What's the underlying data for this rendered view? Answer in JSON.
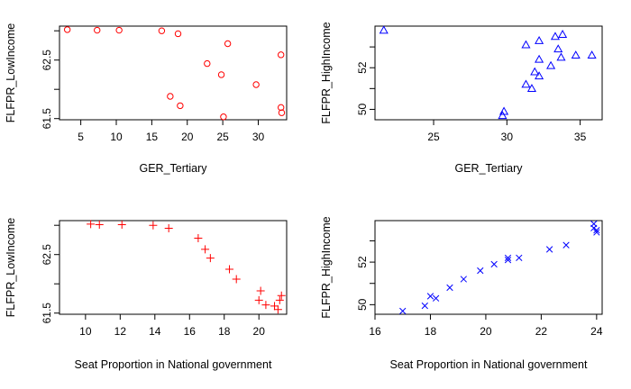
{
  "chart_data": [
    {
      "type": "scatter",
      "marker": "circle",
      "color": "#ff0000",
      "xlabel": "GER_Tertiary",
      "ylabel": "FLFPR_LowIncome",
      "xlim": [
        2.0,
        34.0
      ],
      "ylim": [
        61.48,
        63.08
      ],
      "xticks": [
        5,
        10,
        15,
        20,
        25,
        30
      ],
      "yticks": [
        61.5,
        62.0,
        62.5,
        63.0
      ],
      "yticklabels": [
        "61.5",
        "",
        "62.5",
        ""
      ],
      "points": [
        {
          "x": 3.1,
          "y": 63.02
        },
        {
          "x": 7.3,
          "y": 63.01
        },
        {
          "x": 10.4,
          "y": 63.01
        },
        {
          "x": 16.4,
          "y": 63.0
        },
        {
          "x": 18.7,
          "y": 62.95
        },
        {
          "x": 25.7,
          "y": 62.78
        },
        {
          "x": 33.2,
          "y": 62.59
        },
        {
          "x": 22.8,
          "y": 62.44
        },
        {
          "x": 24.8,
          "y": 62.25
        },
        {
          "x": 29.7,
          "y": 62.08
        },
        {
          "x": 17.6,
          "y": 61.88
        },
        {
          "x": 19.0,
          "y": 61.72
        },
        {
          "x": 33.2,
          "y": 61.69
        },
        {
          "x": 33.3,
          "y": 61.6
        },
        {
          "x": 25.1,
          "y": 61.53
        }
      ]
    },
    {
      "type": "scatter",
      "marker": "triangle",
      "color": "#0000ff",
      "xlabel": "GER_Tertiary",
      "ylabel": "FLFPR_HighIncome",
      "xlim": [
        21.0,
        36.5
      ],
      "ylim": [
        49.5,
        54.0
      ],
      "xticks": [
        25,
        30,
        35
      ],
      "yticks": [
        50,
        51,
        52,
        53
      ],
      "yticklabels": [
        "50",
        "",
        "52",
        ""
      ],
      "points": [
        {
          "x": 21.6,
          "y": 53.8
        },
        {
          "x": 33.8,
          "y": 53.6
        },
        {
          "x": 33.3,
          "y": 53.5
        },
        {
          "x": 32.2,
          "y": 53.3
        },
        {
          "x": 31.3,
          "y": 53.1
        },
        {
          "x": 33.5,
          "y": 52.9
        },
        {
          "x": 34.7,
          "y": 52.6
        },
        {
          "x": 35.8,
          "y": 52.6
        },
        {
          "x": 33.7,
          "y": 52.5
        },
        {
          "x": 32.2,
          "y": 52.4
        },
        {
          "x": 33.0,
          "y": 52.1
        },
        {
          "x": 31.9,
          "y": 51.8
        },
        {
          "x": 32.2,
          "y": 51.6
        },
        {
          "x": 31.3,
          "y": 51.2
        },
        {
          "x": 31.7,
          "y": 51.0
        },
        {
          "x": 29.8,
          "y": 49.9
        },
        {
          "x": 29.7,
          "y": 49.7
        }
      ]
    },
    {
      "type": "scatter",
      "marker": "plus",
      "color": "#ff0000",
      "xlabel": "Seat Proportion in National government",
      "ylabel": "FLFPR_LowIncome",
      "xlim": [
        8.5,
        21.6
      ],
      "ylim": [
        61.48,
        63.08
      ],
      "xticks": [
        10,
        12,
        14,
        16,
        18,
        20
      ],
      "yticks": [
        61.5,
        62.0,
        62.5,
        63.0
      ],
      "yticklabels": [
        "61.5",
        "",
        "62.5",
        ""
      ],
      "points": [
        {
          "x": 10.3,
          "y": 63.02
        },
        {
          "x": 10.8,
          "y": 63.01
        },
        {
          "x": 12.1,
          "y": 63.01
        },
        {
          "x": 13.9,
          "y": 63.0
        },
        {
          "x": 14.8,
          "y": 62.95
        },
        {
          "x": 16.5,
          "y": 62.78
        },
        {
          "x": 16.9,
          "y": 62.59
        },
        {
          "x": 17.2,
          "y": 62.44
        },
        {
          "x": 18.3,
          "y": 62.25
        },
        {
          "x": 18.7,
          "y": 62.08
        },
        {
          "x": 20.1,
          "y": 61.88
        },
        {
          "x": 20.0,
          "y": 61.72
        },
        {
          "x": 21.3,
          "y": 61.8
        },
        {
          "x": 21.2,
          "y": 61.72
        },
        {
          "x": 20.4,
          "y": 61.64
        },
        {
          "x": 20.9,
          "y": 61.62
        },
        {
          "x": 21.1,
          "y": 61.56
        }
      ]
    },
    {
      "type": "scatter",
      "marker": "cross",
      "color": "#0000ff",
      "xlabel": "Seat Proportion in National government",
      "ylabel": "FLFPR_HighIncome",
      "xlim": [
        16.0,
        24.2
      ],
      "ylim": [
        49.55,
        53.95
      ],
      "xticks": [
        16,
        18,
        20,
        22,
        24
      ],
      "yticks": [
        50,
        51,
        52,
        53
      ],
      "yticklabels": [
        "50",
        "",
        "52",
        ""
      ],
      "points": [
        {
          "x": 17.0,
          "y": 49.7
        },
        {
          "x": 17.8,
          "y": 49.95
        },
        {
          "x": 18.0,
          "y": 50.4
        },
        {
          "x": 18.2,
          "y": 50.3
        },
        {
          "x": 18.7,
          "y": 50.8
        },
        {
          "x": 19.2,
          "y": 51.2
        },
        {
          "x": 19.8,
          "y": 51.6
        },
        {
          "x": 20.3,
          "y": 51.9
        },
        {
          "x": 20.8,
          "y": 52.1
        },
        {
          "x": 20.8,
          "y": 52.2
        },
        {
          "x": 21.2,
          "y": 52.2
        },
        {
          "x": 22.3,
          "y": 52.6
        },
        {
          "x": 22.9,
          "y": 52.8
        },
        {
          "x": 23.9,
          "y": 53.8
        },
        {
          "x": 23.9,
          "y": 53.6
        },
        {
          "x": 24.0,
          "y": 53.5
        },
        {
          "x": 24.0,
          "y": 53.4
        }
      ]
    }
  ]
}
